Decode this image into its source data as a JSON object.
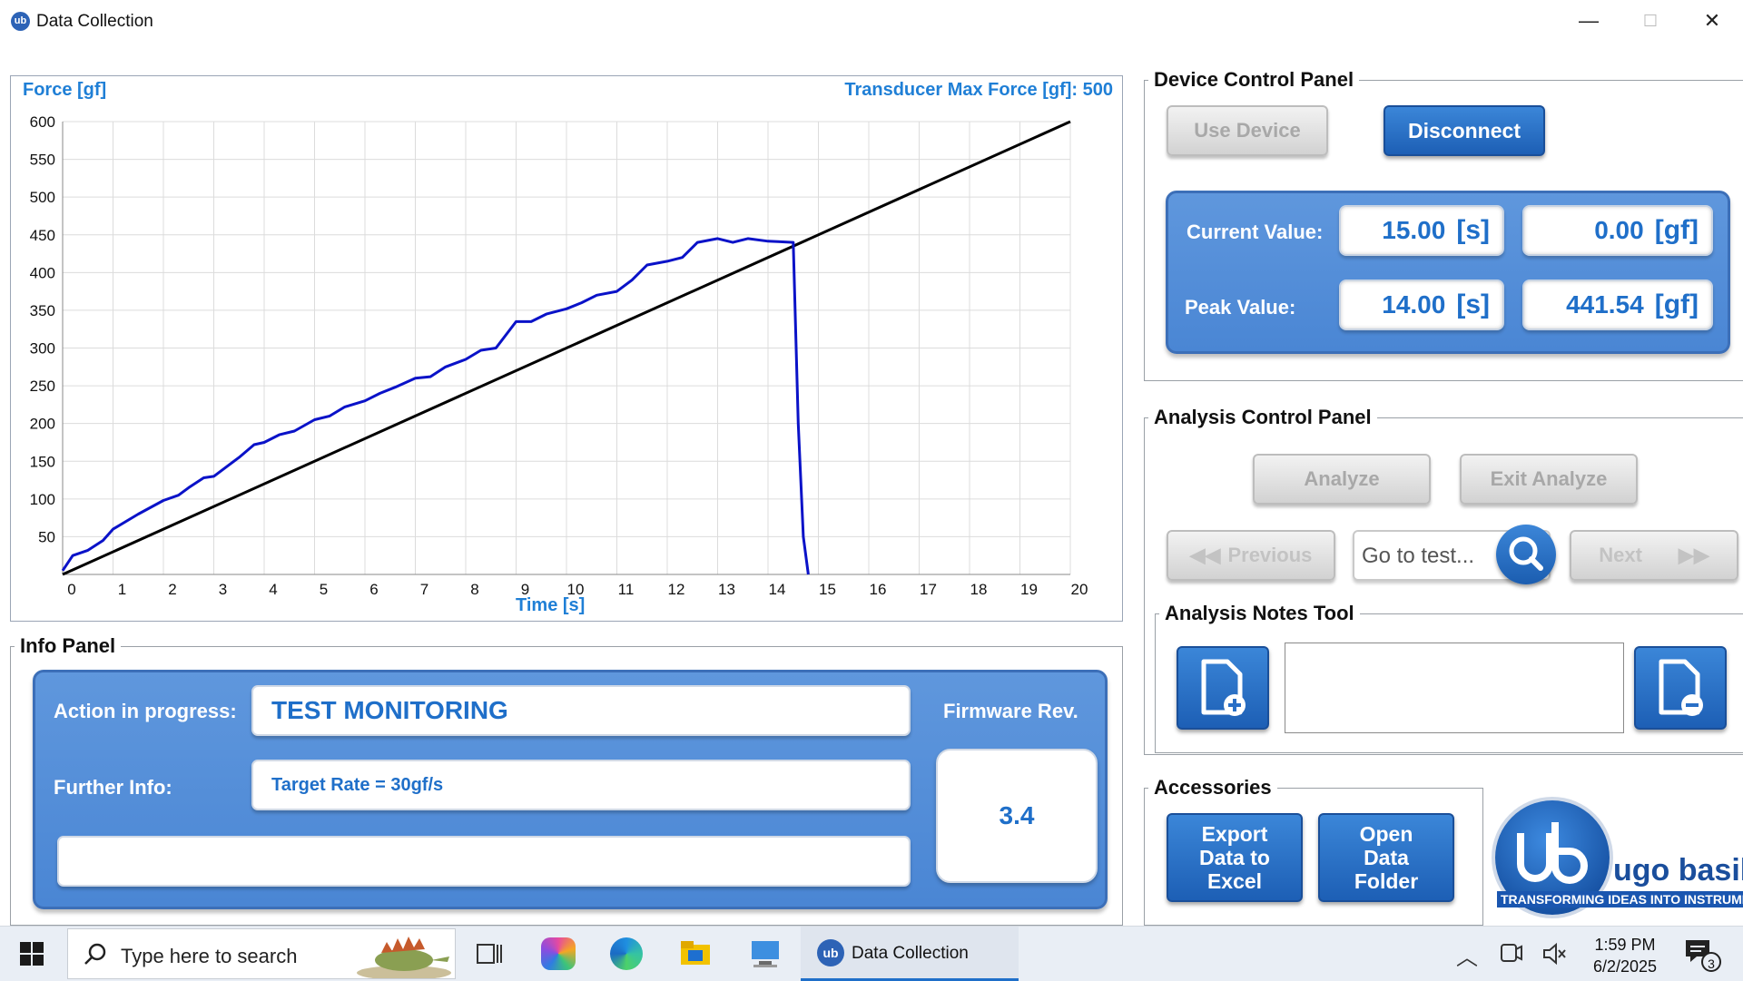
{
  "window": {
    "title": "Data Collection",
    "min": "—",
    "max": "☐",
    "close": "✕"
  },
  "chart": {
    "ylabel": "Force [gf]",
    "xlabel": "Time [s]",
    "transducer": "Transducer Max Force [gf]: 500",
    "colors": {
      "target": "#000000",
      "measured": "#0a12c8",
      "label": "#1f7fd6"
    }
  },
  "chart_data": {
    "type": "line",
    "xlabel": "Time [s]",
    "ylabel": "Force [gf]",
    "xlim": [
      0,
      20
    ],
    "ylim": [
      0,
      600
    ],
    "x_ticks": [
      0,
      1,
      2,
      3,
      4,
      5,
      6,
      7,
      8,
      9,
      10,
      11,
      12,
      13,
      14,
      15,
      16,
      17,
      18,
      19,
      20
    ],
    "y_ticks": [
      50,
      100,
      150,
      200,
      250,
      300,
      350,
      400,
      450,
      500,
      550,
      600
    ],
    "grid": true,
    "series": [
      {
        "x": [
          0,
          20
        ],
        "y": [
          0,
          600
        ]
      },
      {
        "x": [
          0,
          0.2,
          0.5,
          0.8,
          1,
          1.5,
          2,
          2.3,
          2.5,
          2.8,
          3,
          3.3,
          3.5,
          3.8,
          4,
          4.3,
          4.6,
          5,
          5.3,
          5.6,
          6,
          6.3,
          6.6,
          7,
          7.3,
          7.6,
          8,
          8.3,
          8.6,
          9,
          9.3,
          9.6,
          10,
          10.3,
          10.6,
          11,
          11.3,
          11.6,
          12,
          12.3,
          12.6,
          13,
          13.3,
          13.6,
          14,
          14.2,
          14.5,
          14.6,
          14.7,
          14.8
        ],
        "y": [
          5,
          25,
          32,
          45,
          60,
          80,
          98,
          105,
          115,
          128,
          130,
          145,
          155,
          172,
          175,
          185,
          190,
          205,
          210,
          222,
          230,
          240,
          248,
          260,
          262,
          275,
          285,
          297,
          300,
          335,
          335,
          345,
          352,
          360,
          370,
          375,
          390,
          410,
          415,
          420,
          440,
          445,
          440,
          445,
          441.54,
          441,
          440,
          200,
          50,
          0
        ]
      }
    ]
  },
  "device_panel": {
    "title": "Device Control Panel",
    "use_device": "Use Device",
    "disconnect": "Disconnect",
    "current_label": "Current Value:",
    "peak_label": "Peak Value:",
    "current_time": "15.00",
    "current_force": "0.00",
    "peak_time": "14.00",
    "peak_force": "441.54",
    "unit_time": "[s]",
    "unit_force": "[gf]"
  },
  "analysis_panel": {
    "title": "Analysis Control Panel",
    "analyze": "Analyze",
    "exit_analyze": "Exit Analyze",
    "previous": "Previous",
    "next": "Next",
    "goto_placeholder": "Go to test..."
  },
  "notes_tool": {
    "title": "Analysis Notes Tool"
  },
  "accessories": {
    "title": "Accessories",
    "export": "Export Data to Excel",
    "open_folder": "Open Data Folder",
    "logo_text": "ugo basile",
    "logo_tagline": "TRANSFORMING IDEAS INTO INSTRUMENTS"
  },
  "info_panel": {
    "title": "Info Panel",
    "action_label": "Action in progress:",
    "action_value": "TEST MONITORING",
    "further_label": "Further Info:",
    "further_value": "Target Rate =  30gf/s",
    "firmware_label": "Firmware Rev.",
    "firmware_value": "3.4"
  },
  "taskbar": {
    "search_placeholder": "Type here to search",
    "app_label": "Data Collection",
    "time": "1:59 PM",
    "date": "6/2/2025",
    "notif_count": "3"
  }
}
